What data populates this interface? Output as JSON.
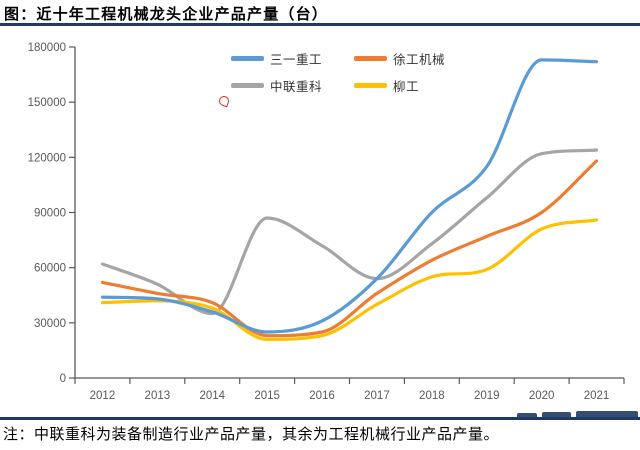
{
  "page": {
    "title": "图：近十年工程机械龙头企业产品产量（台）",
    "note": "注：中联重科为装备制造行业产品产量，其余为工程机械行业产品产量。"
  },
  "colors": {
    "rule_line": "#1F3864",
    "axis": "#595959",
    "tick_label": "#595959",
    "watermark_artifact": "#1F3864",
    "red_artifact": "#C00000"
  },
  "chart_data": {
    "type": "line",
    "smooth": true,
    "grid": false,
    "legend_position": "top-center",
    "title": "图：近十年工程机械龙头企业产品产量（台）",
    "xlabel": "",
    "ylabel": "",
    "x_categories": [
      "2012",
      "2013",
      "2014",
      "2015",
      "2016",
      "2017",
      "2018",
      "2019",
      "2020",
      "2021"
    ],
    "ylim": [
      0,
      180000
    ],
    "ytick_step": 30000,
    "yticks": [
      0,
      30000,
      60000,
      90000,
      120000,
      150000,
      180000
    ],
    "series": [
      {
        "name": "三一重工",
        "color": "#5B9BD5",
        "values": [
          44000,
          43000,
          36000,
          25000,
          31000,
          54000,
          90000,
          115000,
          173000,
          172000
        ]
      },
      {
        "name": "徐工机械",
        "color": "#ED7D31",
        "values": [
          52000,
          46000,
          41000,
          23000,
          25000,
          46000,
          64000,
          77000,
          90000,
          118000
        ]
      },
      {
        "name": "中联重科",
        "color": "#A5A5A5",
        "values": [
          62000,
          51000,
          35000,
          87000,
          72000,
          54000,
          73000,
          98000,
          122000,
          124000
        ]
      },
      {
        "name": "柳工",
        "color": "#FFC000",
        "values": [
          41000,
          42000,
          38000,
          21000,
          23000,
          40000,
          55000,
          59000,
          81000,
          86000
        ]
      }
    ]
  }
}
